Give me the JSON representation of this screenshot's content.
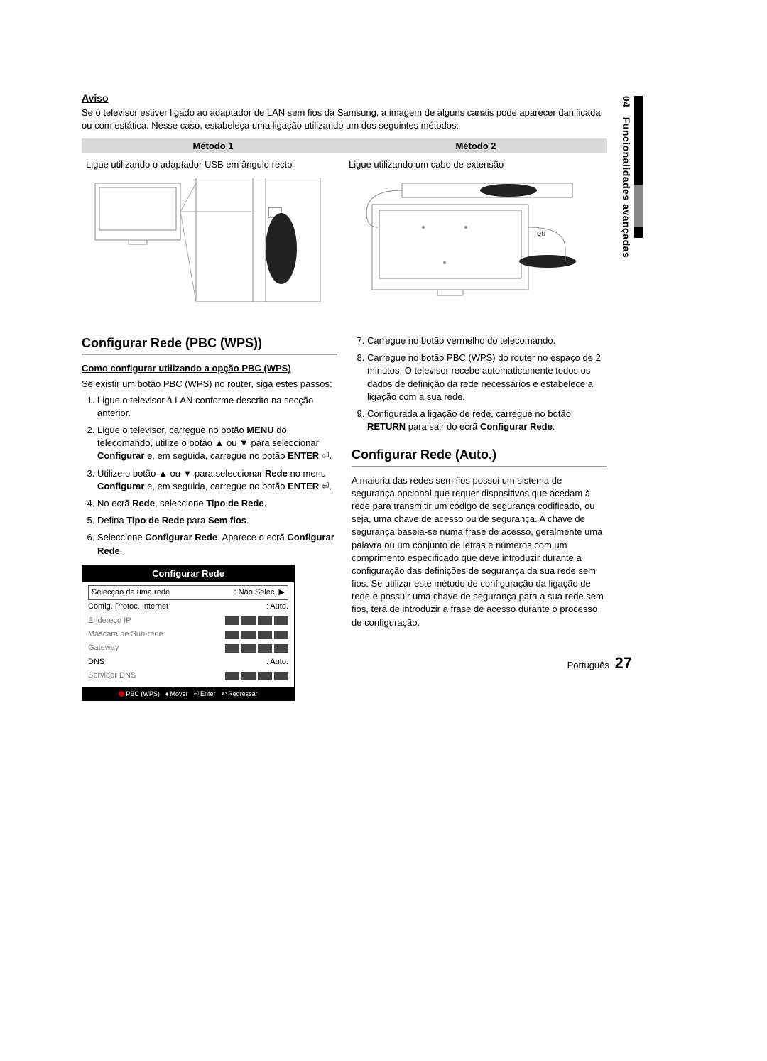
{
  "side": {
    "chapter": "04",
    "label": "Funcionalidades avançadas"
  },
  "aviso": {
    "title": "Aviso",
    "text": "Se o televisor estiver ligado ao adaptador de LAN sem fios da Samsung, a imagem de alguns canais pode aparecer danificada ou com estática. Nesse caso, estabeleça uma ligação utilizando um dos seguintes métodos:"
  },
  "methods": {
    "m1": {
      "header": "Método 1",
      "caption": "Ligue utilizando o adaptador USB em ângulo recto"
    },
    "m2": {
      "header": "Método 2",
      "caption": "Ligue utilizando um cabo de extensão",
      "ou": "ou"
    }
  },
  "left": {
    "title": "Configurar Rede (PBC (WPS))",
    "subtitle": "Como configurar utilizando a opção PBC (WPS)",
    "intro": "Se existir um botão PBC (WPS) no router, siga estes passos:",
    "steps": [
      "Ligue o televisor à LAN conforme descrito na secção anterior.",
      "Ligue o televisor, carregue no botão <b>MENU</b> do telecomando, utilize o botão ▲ ou ▼ para seleccionar <b>Configurar</b> e, em seguida, carregue no botão <b>ENTER</b> ⏎.",
      "Utilize o botão ▲ ou ▼ para seleccionar <b>Rede</b> no menu <b>Configurar</b> e, em seguida, carregue no botão <b>ENTER</b> ⏎.",
      "No ecrã <b>Rede</b>, seleccione <b>Tipo de Rede</b>.",
      "Defina <b>Tipo de Rede</b> para <b>Sem fios</b>.",
      "Seleccione <b>Configurar Rede</b>. Aparece o ecrã <b>Configurar Rede</b>."
    ]
  },
  "menu": {
    "title": "Configurar Rede",
    "rows": [
      {
        "label": "Selecção de uma rede",
        "value": ": Não Selec.",
        "arrow": "▶",
        "highlight": true
      },
      {
        "label": "Config. Protoc. Internet",
        "value": ": Auto."
      },
      {
        "label": "Endereço IP",
        "value": "blocks",
        "muted": true
      },
      {
        "label": "Máscara de Sub-rede",
        "value": "blocks",
        "muted": true
      },
      {
        "label": "Gateway",
        "value": "blocks",
        "muted": true
      },
      {
        "label": "DNS",
        "value": ": Auto."
      },
      {
        "label": "Servidor DNS",
        "value": "blocks",
        "muted": true
      }
    ],
    "footer": {
      "pbc": "PBC (WPS)",
      "mover": "Mover",
      "enter": "Enter",
      "regressar": "Regressar"
    }
  },
  "right": {
    "steps": [
      "Carregue no botão vermelho do telecomando.",
      "Carregue no botão PBC (WPS) do router no espaço de 2 minutos. O televisor recebe automaticamente todos os dados de definição da rede necessários e estabelece a ligação com a sua rede.",
      "Configurada a ligação de rede, carregue no botão <b>RETURN</b> para sair do ecrã <b>Configurar Rede</b>."
    ],
    "title2": "Configurar Rede (Auto.)",
    "para": "A maioria das redes sem fios possui um sistema de segurança opcional que requer dispositivos que acedam à rede para transmitir um código de segurança codificado, ou seja, uma chave de acesso ou de segurança. A chave de segurança baseia-se numa frase de acesso, geralmente uma palavra ou um conjunto de letras e números com um comprimento especificado que deve introduzir durante a configuração das definições de segurança da sua rede sem fios.  Se utilizar este método de configuração da ligação de rede e possuir uma chave de segurança para a sua rede sem fios, terá de introduzir a frase de acesso durante o processo de configuração."
  },
  "footer": {
    "lang": "Português",
    "page": "27"
  },
  "colors": {
    "header_bg": "#d9d9d9",
    "menu_bg": "#000000",
    "menu_fg": "#ffffff",
    "muted": "#777777",
    "block": "#444444",
    "red": "#cc0000"
  }
}
